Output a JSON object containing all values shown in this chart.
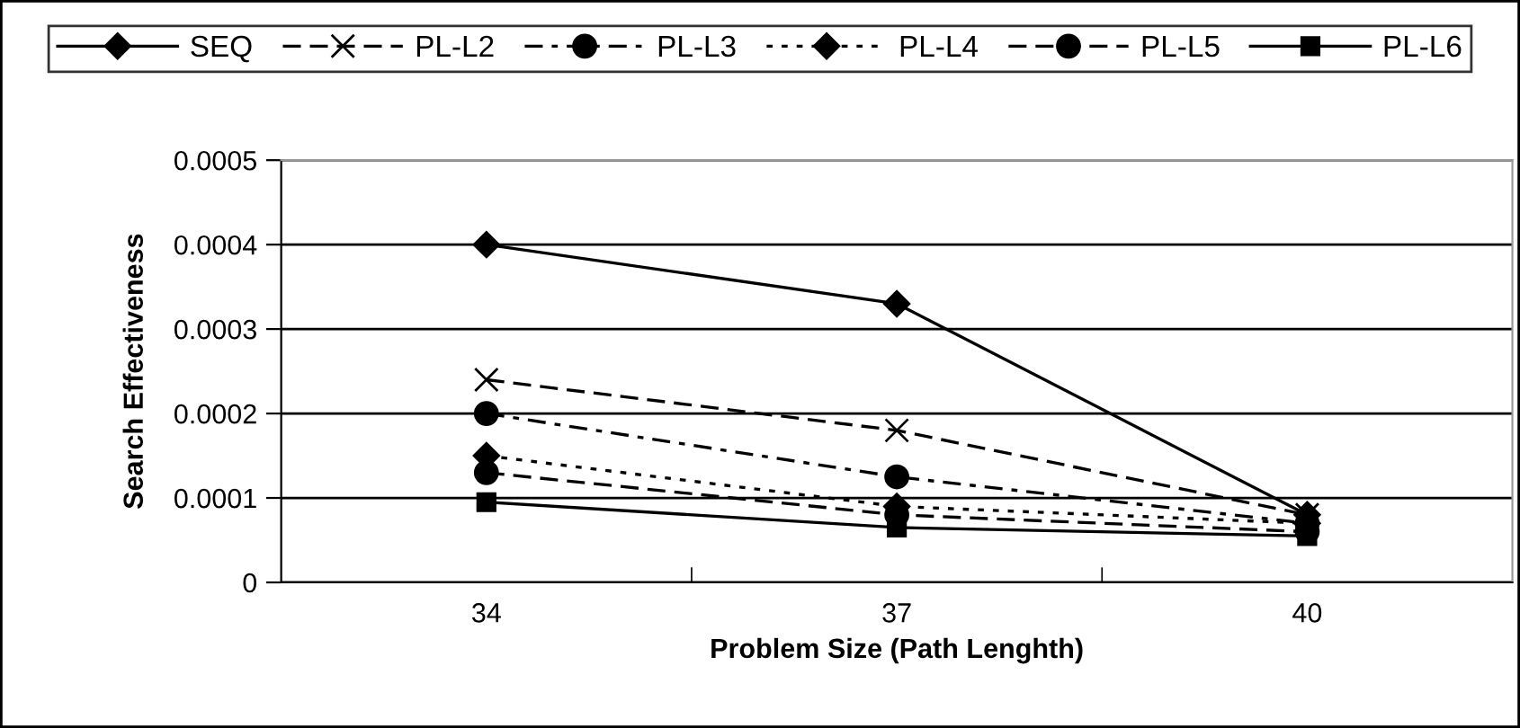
{
  "chart_data": {
    "type": "line",
    "xlabel": "Problem Size (Path Lenghth)",
    "ylabel": "Search Effectiveness",
    "categories": [
      "34",
      "37",
      "40"
    ],
    "series": [
      {
        "name": "SEQ",
        "color": "#000000",
        "values": [
          0.0004,
          0.00033,
          8e-05
        ],
        "marker": "diamond",
        "line_style": "solid"
      },
      {
        "name": "PL-L2",
        "color": "#000000",
        "values": [
          0.00024,
          0.00018,
          8e-05
        ],
        "marker": "cross",
        "line_style": "dashed"
      },
      {
        "name": "PL-L3",
        "color": "#000000",
        "values": [
          0.0002,
          0.000125,
          7e-05
        ],
        "marker": "circle",
        "line_style": "dashdot"
      },
      {
        "name": "PL-L4",
        "color": "#000000",
        "values": [
          0.00015,
          9e-05,
          7e-05
        ],
        "marker": "diamond",
        "line_style": "dotted"
      },
      {
        "name": "PL-L5",
        "color": "#000000",
        "values": [
          0.00013,
          8e-05,
          6e-05
        ],
        "marker": "circle",
        "line_style": "dashed"
      },
      {
        "name": "PL-L6",
        "color": "#000000",
        "values": [
          9.5e-05,
          6.5e-05,
          5.5e-05
        ],
        "marker": "square",
        "line_style": "solid"
      }
    ],
    "ylim": [
      0,
      0.0005
    ],
    "yticks": [
      0,
      0.0001,
      0.0002,
      0.0003,
      0.0004,
      0.0005
    ],
    "grid": "y",
    "legend": "top"
  }
}
